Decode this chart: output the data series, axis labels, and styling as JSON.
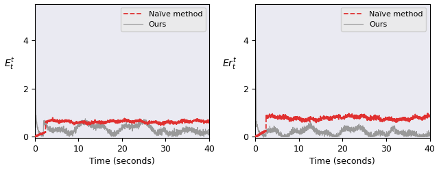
{
  "figsize": [
    6.4,
    2.49
  ],
  "dpi": 100,
  "ylim": [
    -0.05,
    5.5
  ],
  "xlim": [
    0,
    40
  ],
  "yticks": [
    0,
    2,
    4
  ],
  "xticks": [
    0,
    10,
    20,
    30,
    40
  ],
  "xlabel": "Time (seconds)",
  "ylabel_left": "$E_t^t$",
  "ylabel_right": "$Er_t^t$",
  "naive_color": "#e03030",
  "ours_color": "#999999",
  "legend_naive": "Naïve method",
  "legend_ours": "Ours",
  "background_color": "#eaeaf2",
  "legend_facecolor": "#ebebeb",
  "legend_edgecolor": "#cccccc"
}
